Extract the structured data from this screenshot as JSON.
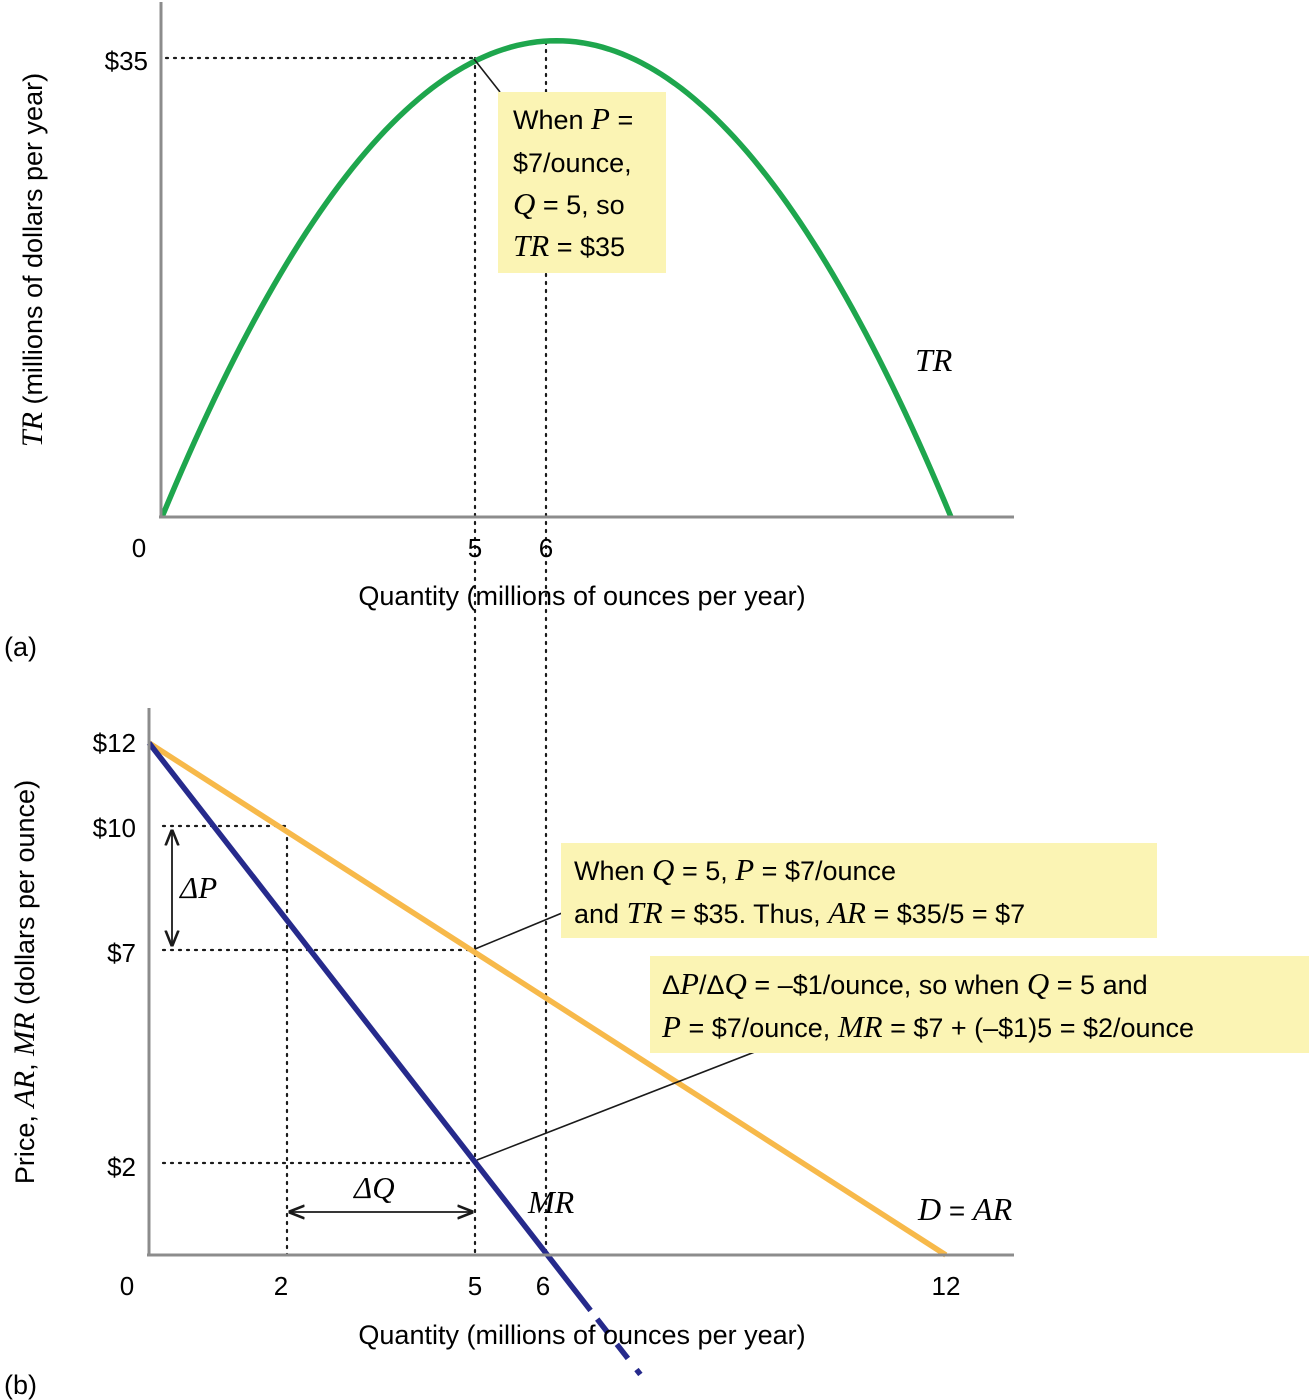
{
  "chart_data": [
    {
      "panel": "(a)",
      "type": "line",
      "xlabel": "Quantity (millions of ounces per year)",
      "ylabel_italic": "TR",
      "ylabel_rest": " (millions of dollars per year)",
      "xlim": [
        0,
        12
      ],
      "xticks": [
        "0",
        "5",
        "6"
      ],
      "yticks": [
        "$35"
      ],
      "series": [
        {
          "name": "TR",
          "color": "#1ea64d",
          "x": [
            0,
            1,
            2,
            3,
            4,
            5,
            6,
            7,
            8,
            9,
            10,
            11,
            12
          ],
          "y": [
            0,
            11,
            20,
            27,
            32,
            35,
            36,
            35,
            32,
            27,
            20,
            11,
            0
          ]
        }
      ],
      "annotation": {
        "line1_pre": "When ",
        "line1_it": "P",
        "line1_post": " =",
        "line2": "$7/ounce,",
        "line3_it": "Q",
        "line3_post": " = 5, so",
        "line4_it": "TR",
        "line4_post": " = $35"
      }
    },
    {
      "panel": "(b)",
      "type": "line",
      "xlabel": "Quantity (millions of ounces per year)",
      "ylabel_pre": "Price, ",
      "ylabel_it1": "AR",
      "ylabel_mid": ", ",
      "ylabel_it2": "MR",
      "ylabel_post": " (dollars per ounce)",
      "xlim": [
        0,
        12
      ],
      "xticks": [
        "0",
        "2",
        "5",
        "6",
        "12"
      ],
      "yticks": [
        "$12",
        "$10",
        "$7",
        "$2"
      ],
      "series": [
        {
          "name": "D = AR",
          "name_it1": "D",
          "name_mid": " = ",
          "name_it2": "AR",
          "color": "#f7b94a",
          "x": [
            0,
            12
          ],
          "y": [
            12,
            0
          ]
        },
        {
          "name": "MR",
          "color": "#262a8c",
          "x": [
            0,
            6
          ],
          "y": [
            12,
            0
          ]
        }
      ],
      "delta_p": "ΔP",
      "delta_q": "ΔQ",
      "note1": {
        "line1_pre": "When ",
        "line1_it1": "Q",
        "line1_mid": " = 5, ",
        "line1_it2": "P",
        "line1_post": " = $7/ounce",
        "line2_pre": "and ",
        "line2_it1": "TR",
        "line2_mid": " = $35. Thus, ",
        "line2_it2": "AR",
        "line2_post": " = $35/5 = $7"
      },
      "note2": {
        "line1_d1": "Δ",
        "line1_it1": "P",
        "line1_slash": "/Δ",
        "line1_it2": "Q",
        "line1_mid": " = –$1/ounce, so when ",
        "line1_it3": "Q",
        "line1_post": " = 5 and",
        "line2_it1": "P",
        "line2_mid": " = $7/ounce, ",
        "line2_it2": "MR",
        "line2_post": " = $7 + (–$1)5 = $2/ounce"
      }
    }
  ]
}
